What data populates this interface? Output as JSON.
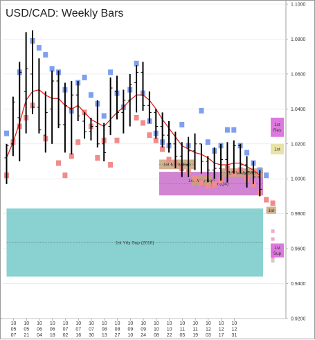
{
  "chart_data": {
    "type": "bar",
    "title": "USD/CAD: Weekly Bars",
    "ylim": [
      0.92,
      1.1
    ],
    "y_ticks": [
      "1.1000",
      "1.0800",
      "1.0600",
      "1.0400",
      "1.0200",
      "1.0000",
      "0.9800",
      "0.9600",
      "0.9400",
      "0.9200"
    ],
    "x_tick_labels": [
      [
        "10",
        "05",
        "07"
      ],
      [
        "10",
        "05",
        "21"
      ],
      [
        "10",
        "06",
        "04"
      ],
      [
        "10",
        "06",
        "18"
      ],
      [
        "10",
        "07",
        "02"
      ],
      [
        "10",
        "07",
        "16"
      ],
      [
        "10",
        "07",
        "30"
      ],
      [
        "10",
        "08",
        "13"
      ],
      [
        "10",
        "08",
        "27"
      ],
      [
        "10",
        "09",
        "10"
      ],
      [
        "10",
        "09",
        "24"
      ],
      [
        "10",
        "10",
        "08"
      ],
      [
        "10",
        "10",
        "22"
      ],
      [
        "10",
        "11",
        "05"
      ],
      [
        "10",
        "11",
        "19"
      ],
      [
        "10",
        "12",
        "03"
      ],
      [
        "10",
        "12",
        "17"
      ],
      [
        "10",
        "12",
        "31"
      ]
    ],
    "series": [
      {
        "type": "ohlc",
        "bars": [
          {
            "h": 1.02,
            "l": 0.997,
            "o": 1.012,
            "c": 1.019
          },
          {
            "h": 1.047,
            "l": 1.013,
            "o": 1.02,
            "c": 1.044
          },
          {
            "h": 1.067,
            "l": 1.01,
            "o": 1.035,
            "c": 1.061
          },
          {
            "h": 1.084,
            "l": 1.026,
            "o": 1.05,
            "c": 1.063
          },
          {
            "h": 1.085,
            "l": 1.037,
            "o": 1.06,
            "c": 1.041
          },
          {
            "h": 1.069,
            "l": 1.026,
            "o": 1.041,
            "c": 1.028
          },
          {
            "h": 1.05,
            "l": 1.015,
            "o": 1.025,
            "c": 1.038
          },
          {
            "h": 1.062,
            "l": 1.02,
            "o": 1.04,
            "c": 1.056
          },
          {
            "h": 1.062,
            "l": 1.029,
            "o": 1.056,
            "c": 1.031
          },
          {
            "h": 1.055,
            "l": 1.015,
            "o": 1.031,
            "c": 1.042
          },
          {
            "h": 1.056,
            "l": 1.014,
            "o": 1.04,
            "c": 1.048
          },
          {
            "h": 1.056,
            "l": 1.033,
            "o": 1.048,
            "c": 1.036
          },
          {
            "h": 1.038,
            "l": 1.023,
            "o": 1.033,
            "c": 1.027
          },
          {
            "h": 1.035,
            "l": 1.022,
            "o": 1.027,
            "c": 1.03
          },
          {
            "h": 1.045,
            "l": 1.018,
            "o": 1.03,
            "c": 1.02
          },
          {
            "h": 1.032,
            "l": 1.01,
            "o": 1.02,
            "c": 1.015
          },
          {
            "h": 1.058,
            "l": 1.025,
            "o": 1.03,
            "c": 1.052
          },
          {
            "h": 1.059,
            "l": 1.034,
            "o": 1.05,
            "c": 1.038
          },
          {
            "h": 1.051,
            "l": 1.026,
            "o": 1.038,
            "c": 1.045
          },
          {
            "h": 1.06,
            "l": 1.03,
            "o": 1.045,
            "c": 1.054
          },
          {
            "h": 1.065,
            "l": 1.038,
            "o": 1.055,
            "c": 1.061
          },
          {
            "h": 1.067,
            "l": 1.039,
            "o": 1.061,
            "c": 1.042
          },
          {
            "h": 1.05,
            "l": 1.032,
            "o": 1.042,
            "c": 1.038
          },
          {
            "h": 1.04,
            "l": 1.023,
            "o": 1.038,
            "c": 1.03
          },
          {
            "h": 1.038,
            "l": 1.018,
            "o": 1.03,
            "c": 1.025
          },
          {
            "h": 1.033,
            "l": 1.015,
            "o": 1.025,
            "c": 1.02
          },
          {
            "h": 1.027,
            "l": 1.006,
            "o": 1.02,
            "c": 1.013
          },
          {
            "h": 1.021,
            "l": 1.001,
            "o": 1.013,
            "c": 1.008
          },
          {
            "h": 1.024,
            "l": 1.001,
            "o": 1.008,
            "c": 1.016
          },
          {
            "h": 1.026,
            "l": 1.005,
            "o": 1.016,
            "c": 1.02
          },
          {
            "h": 1.02,
            "l": 1.003,
            "o": 1.02,
            "c": 1.01
          },
          {
            "h": 1.013,
            "l": 0.998,
            "o": 1.01,
            "c": 1.005
          },
          {
            "h": 1.018,
            "l": 1.0,
            "o": 1.005,
            "c": 1.006
          },
          {
            "h": 1.02,
            "l": 0.999,
            "o": 1.006,
            "c": 1.011
          },
          {
            "h": 1.021,
            "l": 0.998,
            "o": 1.011,
            "c": 1.004
          },
          {
            "h": 1.022,
            "l": 1.003,
            "o": 1.004,
            "c": 1.019
          },
          {
            "h": 1.02,
            "l": 1.003,
            "o": 1.019,
            "c": 1.008
          },
          {
            "h": 1.013,
            "l": 0.995,
            "o": 1.008,
            "c": 1.004
          },
          {
            "h": 1.01,
            "l": 0.997,
            "o": 1.004,
            "c": 1.001
          },
          {
            "h": 1.005,
            "l": 0.99,
            "o": 1.001,
            "c": 0.994
          }
        ]
      },
      {
        "type": "line",
        "values": [
          1.012,
          1.021,
          1.032,
          1.045,
          1.05,
          1.051,
          1.048,
          1.046,
          1.046,
          1.042,
          1.04,
          1.042,
          1.038,
          1.034,
          1.032,
          1.03,
          1.034,
          1.038,
          1.041,
          1.045,
          1.048,
          1.048,
          1.045,
          1.04,
          1.034,
          1.029,
          1.024,
          1.019,
          1.017,
          1.015,
          1.014,
          1.012,
          1.009,
          1.008,
          1.008,
          1.009,
          1.009,
          1.007,
          1.005,
          1.002
        ]
      }
    ],
    "projection_markers": {
      "blue": [
        [
          0,
          1.026
        ],
        [
          2,
          1.061
        ],
        [
          4,
          1.079
        ],
        [
          5,
          1.075
        ],
        [
          6,
          1.071
        ],
        [
          7,
          1.063
        ],
        [
          8,
          1.061
        ],
        [
          9,
          1.051
        ],
        [
          10,
          1.039
        ],
        [
          11,
          1.055
        ],
        [
          12,
          1.058
        ],
        [
          13,
          1.048
        ],
        [
          14,
          1.043
        ],
        [
          15,
          1.036
        ],
        [
          16,
          1.061
        ],
        [
          17,
          1.049
        ],
        [
          18,
          1.041
        ],
        [
          19,
          1.051
        ],
        [
          20,
          1.066
        ],
        [
          21,
          1.049
        ],
        [
          22,
          1.033
        ],
        [
          23,
          1.026
        ],
        [
          24,
          1.021
        ],
        [
          25,
          1.019
        ],
        [
          27,
          1.031
        ],
        [
          28,
          1.019
        ],
        [
          30,
          1.039
        ],
        [
          31,
          1.021
        ],
        [
          32,
          1.016
        ],
        [
          33,
          1.019
        ],
        [
          34,
          1.028
        ],
        [
          35,
          1.028
        ],
        [
          36,
          1.019
        ],
        [
          37,
          1.015
        ],
        [
          38,
          1.009
        ],
        [
          39,
          1.005
        ],
        [
          40,
          1.002
        ]
      ],
      "red": [
        [
          0,
          1.002
        ],
        [
          1,
          1.021
        ],
        [
          2,
          1.03
        ],
        [
          3,
          1.035
        ],
        [
          4,
          1.042
        ],
        [
          6,
          1.023
        ],
        [
          8,
          1.009
        ],
        [
          9,
          1.002
        ],
        [
          10,
          1.013
        ],
        [
          11,
          1.021
        ],
        [
          12,
          1.038
        ],
        [
          13,
          1.03
        ],
        [
          14,
          1.012
        ],
        [
          15,
          1.022
        ],
        [
          16,
          1.008
        ],
        [
          17,
          1.022
        ],
        [
          20,
          1.035
        ],
        [
          21,
          1.032
        ],
        [
          22,
          1.025
        ],
        [
          23,
          1.022
        ],
        [
          24,
          1.017
        ],
        [
          25,
          1.011
        ],
        [
          26,
          1.009
        ],
        [
          27,
          1.006
        ],
        [
          28,
          1.004
        ],
        [
          29,
          1.0
        ],
        [
          30,
          0.998
        ],
        [
          31,
          0.996
        ],
        [
          32,
          0.997
        ],
        [
          33,
          0.999
        ],
        [
          34,
          1.006
        ],
        [
          35,
          1.003
        ],
        [
          36,
          1.005
        ],
        [
          37,
          1.0
        ],
        [
          38,
          0.997
        ],
        [
          39,
          0.992
        ],
        [
          40,
          0.988
        ],
        [
          41,
          0.986
        ]
      ],
      "small_pink": [
        [
          41,
          0.9655
        ],
        [
          41,
          0.9585
        ],
        [
          41,
          0.955
        ],
        [
          41,
          0.97
        ]
      ],
      "small_gray": [
        [
          41,
          0.953
        ]
      ]
    },
    "zones": [
      {
        "label": "1st Yrly Sup (2010)",
        "lo": 0.944,
        "hi": 0.983,
        "start": 0,
        "end": 39.5,
        "color": "#76c9c9"
      },
      {
        "label": "1st Qtly Sup (Q4)",
        "lo": 0.9905,
        "hi": 1.004,
        "start": 23.5,
        "end": 39.5,
        "color": "#c96ec9"
      },
      {
        "label": "1st Mntly Sup",
        "lo": 1.0055,
        "hi": 1.011,
        "start": 23.5,
        "end": 29,
        "color": "#c8a57a"
      },
      {
        "label": "1st Wkly Sup",
        "lo": 0.996,
        "hi": 1.002,
        "start": 28.5,
        "end": 31.5,
        "color": "#c8a57a"
      },
      {
        "label": "1st Mntly Sup",
        "lo": 1.001,
        "hi": 1.006,
        "start": 33,
        "end": 39.5,
        "color": "#c8a57a"
      },
      {
        "label": "1st",
        "lo": 0.98,
        "hi": 0.984,
        "start": 40,
        "end": 41.5,
        "color": "#c8a57a"
      }
    ],
    "side_boxes": [
      {
        "lines": [
          "1st",
          "Res"
        ],
        "lo": 1.024,
        "hi": 1.035,
        "color": "#d96ad9"
      },
      {
        "lines": [
          "1st"
        ],
        "lo": 1.014,
        "hi": 1.02,
        "color": "#e6e09c"
      },
      {
        "lines": [
          "1st",
          "Sup"
        ],
        "lo": 0.955,
        "hi": 0.963,
        "color": "#d96ad9"
      }
    ]
  }
}
